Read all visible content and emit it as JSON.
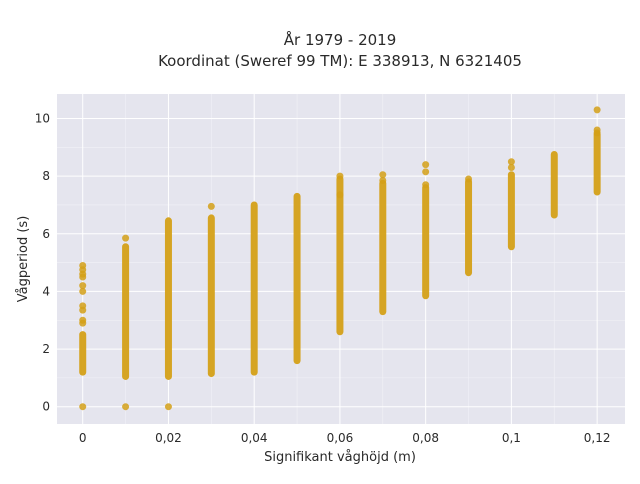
{
  "chart_data": {
    "type": "scatter",
    "title_line1": "År 1979 - 2019",
    "title_line2": "Koordinat (Sweref 99 TM): E 338913, N 6321405",
    "xlabel": "Signifikant våghöjd (m)",
    "ylabel": "Vågperiod (s)",
    "xlim": [
      -0.006,
      0.1265
    ],
    "ylim": [
      -0.6,
      10.85
    ],
    "x_ticks": [
      {
        "value": 0,
        "label": "0"
      },
      {
        "value": 0.02,
        "label": "0,02"
      },
      {
        "value": 0.04,
        "label": "0,04"
      },
      {
        "value": 0.06,
        "label": "0,06"
      },
      {
        "value": 0.08,
        "label": "0,08"
      },
      {
        "value": 0.1,
        "label": "0,1"
      },
      {
        "value": 0.12,
        "label": "0,12"
      }
    ],
    "y_ticks": [
      {
        "value": 0,
        "label": "0"
      },
      {
        "value": 2,
        "label": "2"
      },
      {
        "value": 4,
        "label": "4"
      },
      {
        "value": 6,
        "label": "6"
      },
      {
        "value": 8,
        "label": "8"
      },
      {
        "value": 10,
        "label": "10"
      }
    ],
    "grid": true,
    "background_color": "#e5e5ee",
    "marker_color": "#d4a017",
    "ranges": [
      {
        "x": 0.0,
        "ymin": 1.2,
        "ymax": 2.5
      },
      {
        "x": 0.01,
        "ymin": 1.05,
        "ymax": 5.55
      },
      {
        "x": 0.02,
        "ymin": 1.05,
        "ymax": 6.45
      },
      {
        "x": 0.03,
        "ymin": 1.15,
        "ymax": 6.55
      },
      {
        "x": 0.04,
        "ymin": 1.2,
        "ymax": 7.0
      },
      {
        "x": 0.05,
        "ymin": 1.6,
        "ymax": 7.3
      },
      {
        "x": 0.06,
        "ymin": 2.6,
        "ymax": 7.9
      },
      {
        "x": 0.07,
        "ymin": 3.3,
        "ymax": 7.75
      },
      {
        "x": 0.08,
        "ymin": 3.85,
        "ymax": 7.6
      },
      {
        "x": 0.09,
        "ymin": 4.65,
        "ymax": 7.8
      },
      {
        "x": 0.1,
        "ymin": 5.55,
        "ymax": 8.05
      },
      {
        "x": 0.11,
        "ymin": 6.65,
        "ymax": 8.75
      },
      {
        "x": 0.12,
        "ymin": 7.45,
        "ymax": 9.45
      }
    ],
    "points": [
      {
        "x": 0.0,
        "y": 0.0
      },
      {
        "x": 0.0,
        "y": 2.9
      },
      {
        "x": 0.0,
        "y": 3.0
      },
      {
        "x": 0.0,
        "y": 3.35
      },
      {
        "x": 0.0,
        "y": 3.5
      },
      {
        "x": 0.0,
        "y": 4.0
      },
      {
        "x": 0.0,
        "y": 4.2
      },
      {
        "x": 0.0,
        "y": 4.5
      },
      {
        "x": 0.0,
        "y": 4.6
      },
      {
        "x": 0.0,
        "y": 4.75
      },
      {
        "x": 0.0,
        "y": 4.9
      },
      {
        "x": 0.01,
        "y": 0.0
      },
      {
        "x": 0.01,
        "y": 5.85
      },
      {
        "x": 0.02,
        "y": 0.0
      },
      {
        "x": 0.03,
        "y": 6.95
      },
      {
        "x": 0.06,
        "y": 8.0
      },
      {
        "x": 0.06,
        "y": 7.35
      },
      {
        "x": 0.07,
        "y": 8.05
      },
      {
        "x": 0.07,
        "y": 7.85
      },
      {
        "x": 0.08,
        "y": 8.4
      },
      {
        "x": 0.08,
        "y": 8.15
      },
      {
        "x": 0.08,
        "y": 7.7
      },
      {
        "x": 0.09,
        "y": 7.9
      },
      {
        "x": 0.1,
        "y": 8.5
      },
      {
        "x": 0.1,
        "y": 8.3
      },
      {
        "x": 0.12,
        "y": 10.3
      },
      {
        "x": 0.12,
        "y": 9.5
      },
      {
        "x": 0.12,
        "y": 9.6
      }
    ]
  }
}
